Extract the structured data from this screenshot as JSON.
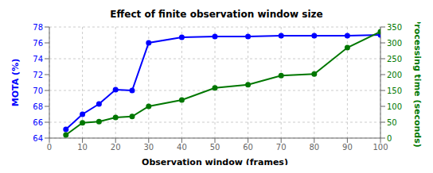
{
  "chart_data": {
    "type": "line",
    "title": "Effect of finite observation window size",
    "xlabel": "Observation window (frames)",
    "ylabel": "MOTA (%)",
    "y2label": "Processing time (seconds)",
    "x": [
      5,
      10,
      15,
      20,
      25,
      30,
      40,
      50,
      60,
      70,
      80,
      90,
      100
    ],
    "series": [
      {
        "color": "#0000FF",
        "marker": "circle",
        "values": [
          65.1,
          67.0,
          68.3,
          70.1,
          70.0,
          76.0,
          76.7,
          76.8,
          76.8,
          76.9,
          76.9,
          76.9,
          77.0
        ]
      },
      {
        "color": "#007700",
        "marker": "circle",
        "axis": "y2",
        "values": [
          10,
          48,
          52,
          65,
          68,
          100,
          120,
          158,
          168,
          197,
          202,
          285,
          335
        ]
      }
    ],
    "xlim": [
      0,
      100
    ],
    "xticks": [
      0,
      10,
      20,
      30,
      40,
      50,
      60,
      70,
      80,
      90,
      100
    ],
    "ylim": [
      64,
      78
    ],
    "yticks": [
      64,
      66,
      68,
      70,
      72,
      74,
      76,
      78
    ],
    "y2lim": [
      0,
      350
    ],
    "y2ticks": [
      0,
      50,
      100,
      150,
      200,
      250,
      300,
      350
    ],
    "grid": true
  }
}
